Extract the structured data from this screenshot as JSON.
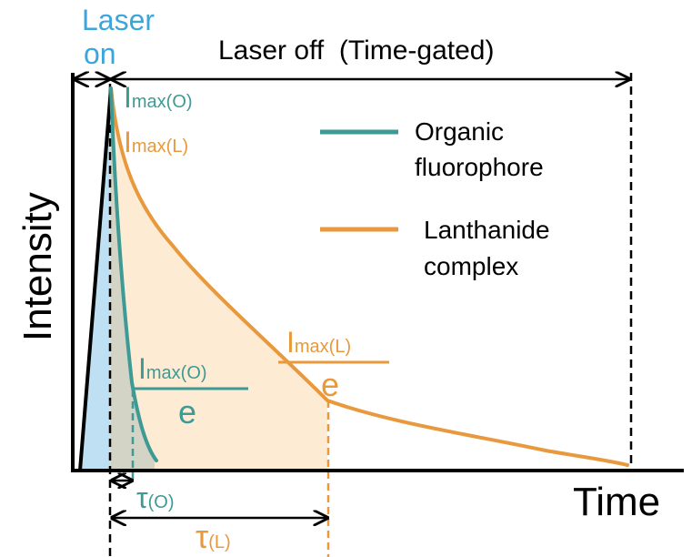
{
  "colors": {
    "organic": "#3d9a94",
    "lanthanide": "#e8993e",
    "laser_on": "#3aa6dc",
    "axis": "#000000",
    "organic_fill": "#bfe0f2",
    "lanthanide_fill": "#fdebd3",
    "overlap_fill": "#d3d3c6"
  },
  "labels": {
    "laser_on_line1": "Laser",
    "laser_on_line2": "on",
    "laser_off": "Laser off  (Time-gated)",
    "y_axis": "Intensity",
    "x_axis": "Time",
    "imax_o": {
      "base": "I",
      "sub": "max(O)"
    },
    "imax_l": {
      "base": "I",
      "sub": "max(L)"
    },
    "frac_o": {
      "numer_base": "I",
      "numer_sub": "max(O)",
      "denom": "e"
    },
    "frac_l": {
      "numer_base": "I",
      "numer_sub": "max(L)",
      "denom": "e"
    },
    "tau_o": {
      "base": "τ",
      "sub": "(O)"
    },
    "tau_l": {
      "base": "τ",
      "sub": "(L)"
    }
  },
  "legend": [
    {
      "line1": "Organic",
      "line2": "fluorophore",
      "color_key": "organic"
    },
    {
      "line1": "Lanthanide",
      "line2": "complex",
      "color_key": "lanthanide"
    }
  ]
}
